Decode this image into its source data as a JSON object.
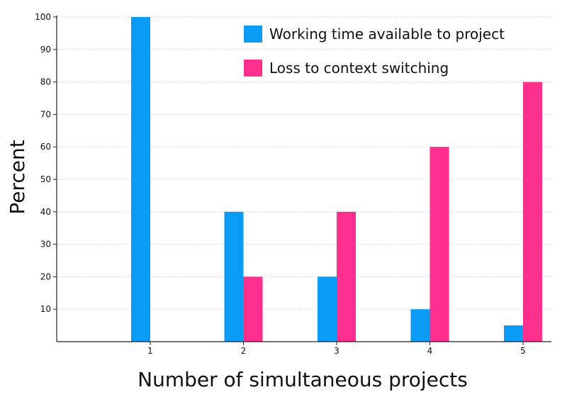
{
  "chart_data": {
    "type": "bar",
    "title": "",
    "xlabel": "Number of simultaneous projects",
    "ylabel": "Percent",
    "categories": [
      "1",
      "2",
      "3",
      "4",
      "5"
    ],
    "series": [
      {
        "name": "Working time available to project",
        "color": "#0a9bf5",
        "values": [
          100,
          40,
          20,
          10,
          5
        ]
      },
      {
        "name": "Loss to context switching",
        "color": "#ff2f8e",
        "values": [
          0,
          20,
          40,
          60,
          80
        ]
      }
    ],
    "ylim": [
      0,
      100
    ],
    "yticks": [
      10,
      20,
      30,
      40,
      50,
      60,
      70,
      80,
      90,
      100
    ],
    "grid": true,
    "legend_position": "top-right"
  }
}
